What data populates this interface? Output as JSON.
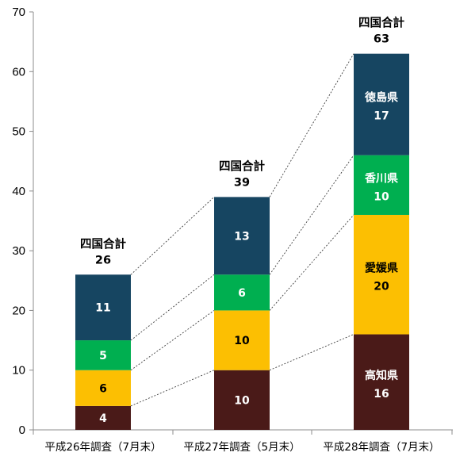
{
  "chart_data": {
    "type": "bar",
    "stacked": true,
    "categories": [
      "平成26年調査（7月末）",
      "平成27年調査（5月末）",
      "平成28年調査（7月末）"
    ],
    "series": [
      {
        "name": "高知県",
        "values": [
          4,
          10,
          16
        ],
        "color": "#4a1a18",
        "label_visible": [
          false,
          false,
          true
        ]
      },
      {
        "name": "愛媛県",
        "values": [
          6,
          10,
          20
        ],
        "color": "#fcbf02",
        "label_visible": [
          false,
          false,
          true
        ]
      },
      {
        "name": "香川県",
        "values": [
          5,
          6,
          10
        ],
        "color": "#00af50",
        "label_visible": [
          false,
          false,
          true
        ]
      },
      {
        "name": "徳島県",
        "values": [
          11,
          13,
          17
        ],
        "color": "#164561",
        "label_visible": [
          false,
          false,
          true
        ]
      }
    ],
    "totals": {
      "label": "四国合計",
      "values": [
        "26",
        "39",
        "63"
      ]
    },
    "ylim": [
      0,
      70
    ],
    "yticks": [
      "0",
      "10",
      "20",
      "30",
      "40",
      "50",
      "60",
      "70"
    ],
    "grid": false,
    "legend": "none",
    "connector_lines": "dotted"
  }
}
